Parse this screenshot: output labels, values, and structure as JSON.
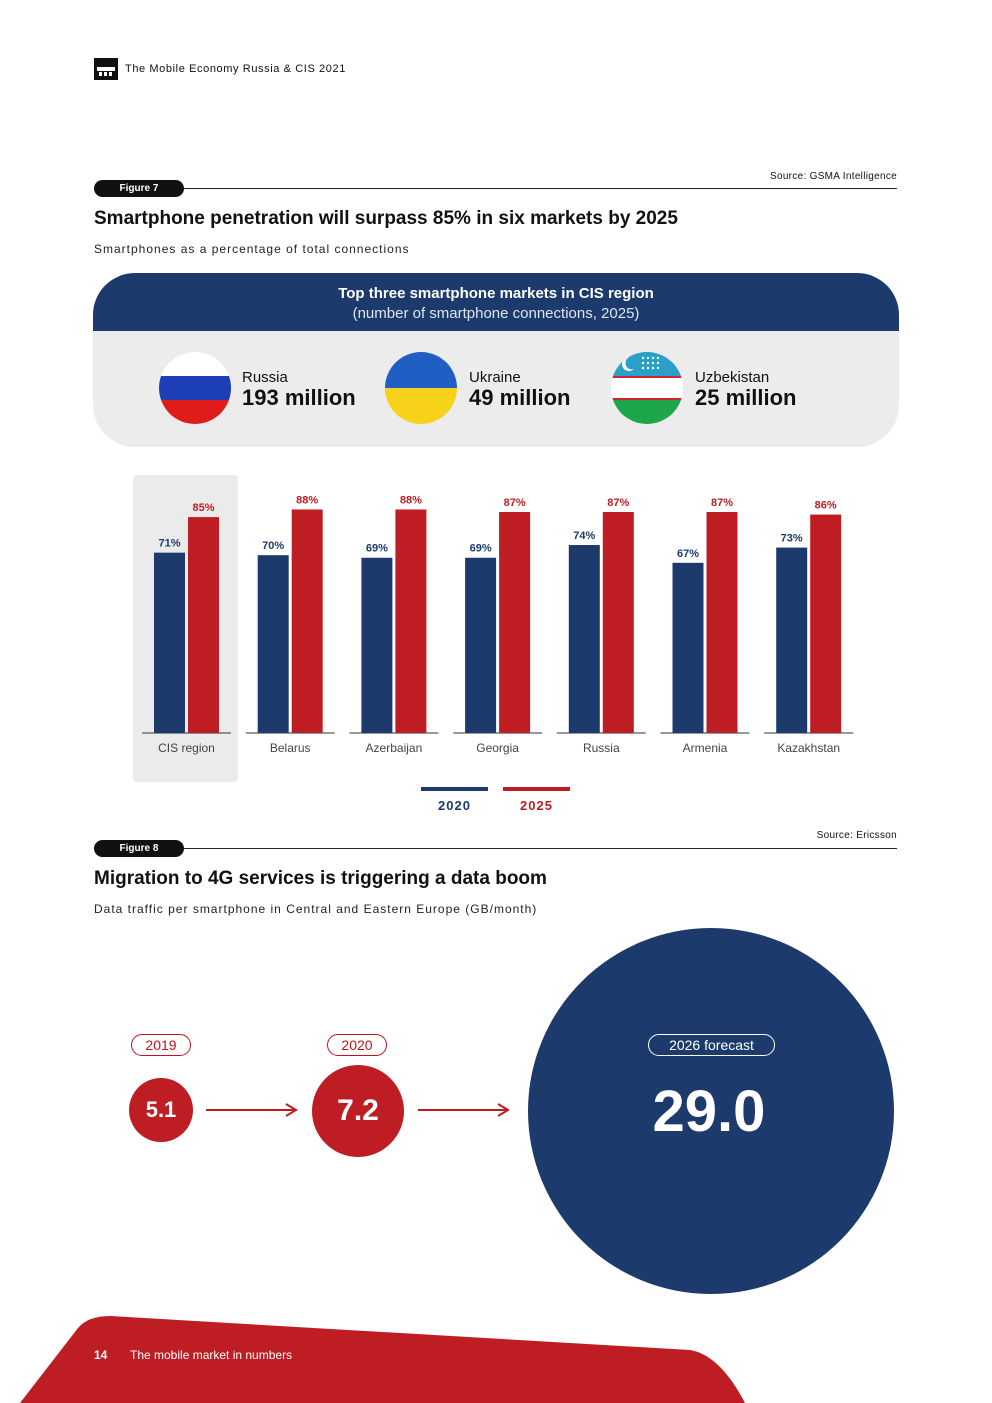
{
  "header": {
    "title": "The Mobile Economy Russia & CIS 2021"
  },
  "figure7": {
    "tag": "Figure 7",
    "source": "Source: GSMA Intelligence",
    "title": "Smartphone penetration will surpass 85% in six markets by 2025",
    "subtitle": "Smartphones as a percentage of total connections",
    "panel": {
      "title": "Top three smartphone markets in CIS region",
      "subtitle": "(number of smartphone connections, 2025)",
      "countries": [
        {
          "name": "Russia",
          "value": "193 million"
        },
        {
          "name": "Ukraine",
          "value": "49 million"
        },
        {
          "name": "Uzbekistan",
          "value": "25 million"
        }
      ]
    }
  },
  "chart_data": {
    "type": "bar",
    "title": "Smartphones as a percentage of total connections",
    "categories": [
      "CIS region",
      "Belarus",
      "Azerbaijan",
      "Georgia",
      "Russia",
      "Armenia",
      "Kazakhstan"
    ],
    "series": [
      {
        "name": "2020",
        "color": "#1c3a6b",
        "values": [
          71,
          70,
          69,
          69,
          74,
          67,
          73
        ],
        "labels": [
          "71%",
          "70%",
          "69%",
          "69%",
          "74%",
          "67%",
          "73%"
        ]
      },
      {
        "name": "2025",
        "color": "#be1e23",
        "values": [
          85,
          88,
          88,
          87,
          87,
          87,
          86
        ],
        "labels": [
          "85%",
          "88%",
          "88%",
          "87%",
          "87%",
          "87%",
          "86%"
        ]
      }
    ],
    "ylim": [
      0,
      100
    ],
    "highlighted_category": "CIS region"
  },
  "legend": {
    "items": [
      {
        "label": "2020",
        "color": "#1c3a6b"
      },
      {
        "label": "2025",
        "color": "#be1e23"
      }
    ]
  },
  "figure8": {
    "tag": "Figure 8",
    "source": "Source: Ericsson",
    "title": "Migration to 4G services is triggering a data boom",
    "subtitle": "Data traffic per smartphone in Central and Eastern Europe (GB/month)",
    "points": [
      {
        "year": "2019",
        "value": "5.1"
      },
      {
        "year": "2020",
        "value": "7.2"
      },
      {
        "year": "2026 forecast",
        "value": "29.0"
      }
    ]
  },
  "footer": {
    "page_number": "14",
    "section": "The mobile market in numbers"
  },
  "colors": {
    "navy": "#1c3a6b",
    "red": "#be1e23"
  }
}
